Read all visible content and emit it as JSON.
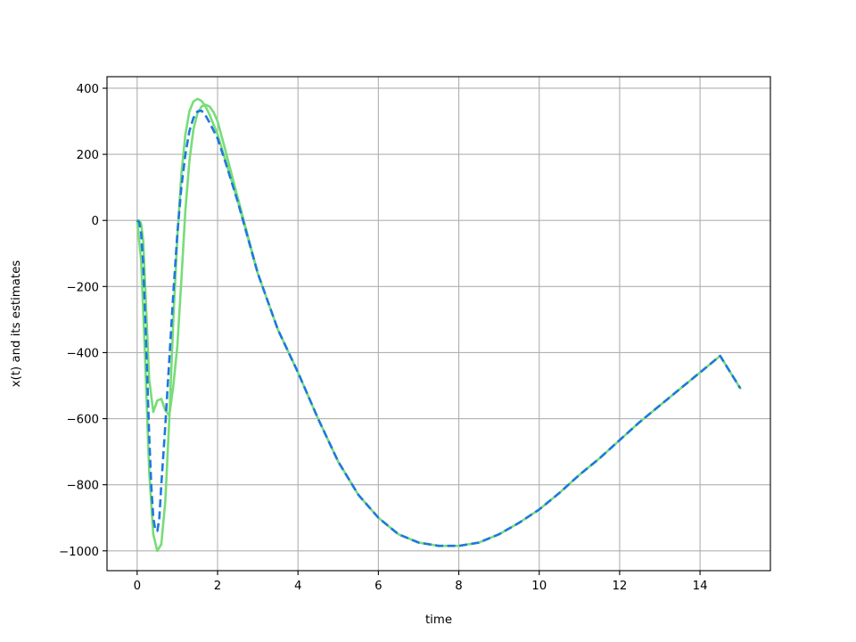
{
  "chart_data": {
    "type": "line",
    "title": "",
    "xlabel": "time",
    "ylabel": "x(t) and its estimates",
    "xlim": [
      -0.75,
      15.75
    ],
    "ylim": [
      -1060,
      435
    ],
    "xticks": [
      0,
      2,
      4,
      6,
      8,
      10,
      12,
      14
    ],
    "yticks": [
      -1000,
      -800,
      -600,
      -400,
      -200,
      0,
      200,
      400
    ],
    "xtick_labels": [
      "0",
      "2",
      "4",
      "6",
      "8",
      "10",
      "12",
      "14"
    ],
    "ytick_labels": [
      "−1000",
      "−800",
      "−600",
      "−400",
      "−200",
      "0",
      "200",
      "400"
    ],
    "grid": true,
    "legend": null,
    "series": [
      {
        "color": "#77dd77",
        "style": "solid",
        "x": [
          0,
          0.1,
          0.2,
          0.3,
          0.4,
          0.5,
          0.6,
          0.7,
          0.8,
          0.9,
          1.0,
          1.1,
          1.2,
          1.3,
          1.4,
          1.5,
          1.6,
          1.7,
          1.8,
          1.9,
          2.0,
          2.2,
          2.5,
          3.0,
          3.5,
          4.0,
          4.5,
          5.0,
          5.5,
          6.0,
          6.5,
          7.0,
          7.5,
          8.0,
          8.5,
          9.0,
          9.5,
          10.0,
          10.5,
          11.0,
          11.5,
          12.0,
          12.5,
          13.0,
          13.5,
          14.0,
          14.5,
          15.0
        ],
        "y": [
          0,
          -120,
          -420,
          -760,
          -950,
          -1000,
          -980,
          -850,
          -600,
          -300,
          -50,
          140,
          260,
          330,
          360,
          368,
          362,
          345,
          320,
          290,
          260,
          180,
          60,
          -160,
          -330,
          -460,
          -600,
          -730,
          -830,
          -900,
          -950,
          -975,
          -985,
          -985,
          -975,
          -950,
          -915,
          -875,
          -825,
          -770,
          -720,
          -665,
          -610,
          -560,
          -510,
          -460,
          -410,
          -508
        ]
      },
      {
        "color": "#77dd77",
        "style": "solid",
        "x": [
          0,
          0.05,
          0.1,
          0.15,
          0.2,
          0.3,
          0.4,
          0.5,
          0.6,
          0.7,
          0.8,
          0.9,
          1.0,
          1.1,
          1.2,
          1.3,
          1.4,
          1.5,
          1.6,
          1.7,
          1.8,
          1.9,
          2.0,
          2.2,
          2.5,
          3.0
        ],
        "y": [
          0,
          0,
          -10,
          -60,
          -200,
          -480,
          -580,
          -545,
          -540,
          -575,
          -590,
          -500,
          -380,
          -180,
          30,
          180,
          275,
          325,
          345,
          350,
          345,
          328,
          300,
          210,
          70,
          -160
        ]
      },
      {
        "color": "#1f77e0",
        "style": "dashed",
        "x": [
          0,
          0.05,
          0.1,
          0.15,
          0.2,
          0.25,
          0.3,
          0.35,
          0.4,
          0.45,
          0.5,
          0.55,
          0.6,
          0.7,
          0.8,
          0.9,
          1.0,
          1.1,
          1.2,
          1.3,
          1.4,
          1.5,
          1.6,
          1.7,
          1.8,
          1.9,
          2.0,
          2.2,
          2.5,
          3.0,
          3.5,
          4.0,
          4.5,
          5.0,
          5.5,
          6.0,
          6.5,
          7.0,
          7.5,
          8.0,
          8.5,
          9.0,
          9.5,
          10.0,
          10.5,
          11.0,
          11.5,
          12.0,
          12.5,
          13.0,
          13.5,
          14.0,
          14.5,
          15.0
        ],
        "y": [
          0,
          -5,
          -40,
          -130,
          -290,
          -470,
          -650,
          -800,
          -900,
          -935,
          -940,
          -905,
          -800,
          -620,
          -420,
          -220,
          -40,
          100,
          200,
          270,
          310,
          330,
          332,
          318,
          296,
          272,
          248,
          175,
          58,
          -160,
          -330,
          -460,
          -600,
          -730,
          -830,
          -900,
          -950,
          -975,
          -985,
          -985,
          -975,
          -950,
          -915,
          -875,
          -825,
          -770,
          -720,
          -665,
          -610,
          -560,
          -510,
          -460,
          -410,
          -508
        ]
      }
    ]
  }
}
